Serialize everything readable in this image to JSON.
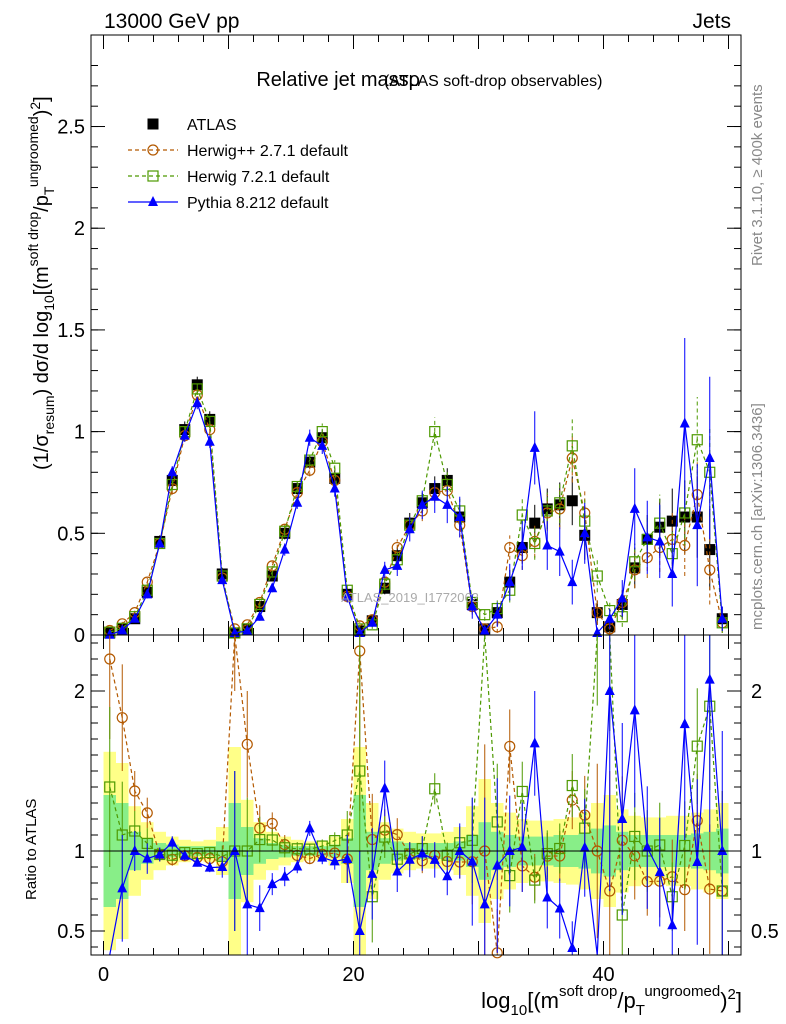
{
  "header": {
    "left": "13000 GeV pp",
    "right": "Jets"
  },
  "side_labels": {
    "rivet": "Rivet 3.1.10, ≥ 400k events",
    "mcplots": "mcplots.cern.ch [arXiv:1306.3436]"
  },
  "watermark": "ATLAS_2019_I1772062",
  "chart_data": {
    "type": "line",
    "title": "Relative jet massρ",
    "subtitle": "(ATLAS soft-drop observables)",
    "main_panel": {
      "ylabel": "(1/σresum) dσ/d log10[(msoft drop/pTungroomed)2]",
      "xlim": [
        -1,
        51
      ],
      "ylim": [
        0,
        2.95
      ],
      "yticks": [
        0,
        0.5,
        1,
        1.5,
        2,
        2.5
      ],
      "ytick_labels": [
        "0",
        "0.5",
        "1",
        "1.5",
        "2",
        "2.5"
      ]
    },
    "ratio_panel": {
      "ylabel": "Ratio to ATLAS",
      "ylim": [
        0.35,
        2.35
      ],
      "yticks": [
        0.5,
        1,
        2
      ],
      "ytick_labels": [
        "0.5",
        "1",
        "2"
      ]
    },
    "x": {
      "label": "log10[(msoft drop/pTungroomed)2]",
      "ticks": [
        0,
        20,
        40
      ],
      "tick_labels": [
        "0",
        "20",
        "40"
      ]
    },
    "legend": {
      "position": "top-left",
      "entries": [
        "ATLAS",
        "Herwig++ 2.7.1 default",
        "Herwig 7.2.1 default",
        "Pythia 8.212 default"
      ]
    },
    "series": [
      {
        "name": "ATLAS",
        "color": "#000000",
        "marker": "filled-square",
        "x": [
          0.5,
          1.5,
          2.5,
          3.5,
          4.5,
          5.5,
          6.5,
          7.5,
          8.5,
          9.5,
          10.5,
          11.5,
          12.5,
          13.5,
          14.5,
          15.5,
          16.5,
          17.5,
          18.5,
          19.5,
          20.5,
          21.5,
          22.5,
          23.5,
          24.5,
          25.5,
          26.5,
          27.5,
          28.5,
          29.5,
          30.5,
          31.5,
          32.5,
          33.5,
          34.5,
          35.5,
          36.5,
          37.5,
          38.5,
          39.5,
          40.5,
          41.5,
          42.5,
          43.5,
          44.5,
          45.5,
          46.5,
          47.5,
          48.5,
          49.5
        ],
        "y": [
          0.01,
          0.03,
          0.08,
          0.21,
          0.46,
          0.76,
          1.01,
          1.23,
          1.06,
          0.3,
          0.01,
          0.03,
          0.14,
          0.29,
          0.5,
          0.72,
          0.85,
          0.97,
          0.77,
          0.2,
          0.02,
          0.07,
          0.23,
          0.39,
          0.55,
          0.65,
          0.72,
          0.76,
          0.58,
          0.15,
          0.03,
          0.11,
          0.26,
          0.43,
          0.55,
          0.62,
          0.64,
          0.66,
          0.49,
          0.11,
          0.04,
          0.15,
          0.33,
          0.47,
          0.53,
          0.56,
          0.58,
          0.58,
          0.42,
          0.08
        ],
        "err": [
          0.005,
          0.01,
          0.01,
          0.02,
          0.03,
          0.04,
          0.04,
          0.04,
          0.04,
          0.03,
          0.005,
          0.01,
          0.02,
          0.02,
          0.03,
          0.03,
          0.03,
          0.04,
          0.04,
          0.03,
          0.01,
          0.02,
          0.03,
          0.04,
          0.05,
          0.05,
          0.06,
          0.06,
          0.06,
          0.04,
          0.02,
          0.04,
          0.06,
          0.08,
          0.09,
          0.1,
          0.11,
          0.12,
          0.12,
          0.06,
          0.03,
          0.07,
          0.1,
          0.12,
          0.14,
          0.16,
          0.18,
          0.2,
          0.2,
          0.06
        ]
      },
      {
        "name": "Herwig++ 2.7.1 default",
        "color": "#b35900",
        "marker": "open-circle",
        "dash": "4,3",
        "x": [
          0.5,
          1.5,
          2.5,
          3.5,
          4.5,
          5.5,
          6.5,
          7.5,
          8.5,
          9.5,
          10.5,
          11.5,
          12.5,
          13.5,
          14.5,
          15.5,
          16.5,
          17.5,
          18.5,
          19.5,
          20.5,
          21.5,
          22.5,
          23.5,
          24.5,
          25.5,
          26.5,
          27.5,
          28.5,
          29.5,
          30.5,
          31.5,
          32.5,
          33.5,
          34.5,
          35.5,
          36.5,
          37.5,
          38.5,
          39.5,
          40.5,
          41.5,
          42.5,
          43.5,
          44.5,
          45.5,
          46.5,
          47.5,
          48.5,
          49.5
        ],
        "y": [
          0.022,
          0.055,
          0.11,
          0.26,
          0.45,
          0.72,
          0.98,
          1.18,
          1.01,
          0.28,
          0.03,
          0.05,
          0.16,
          0.34,
          0.52,
          0.7,
          0.81,
          0.95,
          0.76,
          0.19,
          0.045,
          0.075,
          0.26,
          0.43,
          0.54,
          0.61,
          0.7,
          0.71,
          0.54,
          0.14,
          0.03,
          0.04,
          0.43,
          0.39,
          0.46,
          0.6,
          0.62,
          0.87,
          0.6,
          0.11,
          0.03,
          0.16,
          0.32,
          0.38,
          0.43,
          0.47,
          0.44,
          0.69,
          0.32,
          0.06
        ],
        "err": [
          0.005,
          0.01,
          0.01,
          0.02,
          0.02,
          0.03,
          0.03,
          0.03,
          0.03,
          0.02,
          0.01,
          0.01,
          0.02,
          0.02,
          0.03,
          0.03,
          0.03,
          0.04,
          0.04,
          0.03,
          0.02,
          0.02,
          0.03,
          0.04,
          0.04,
          0.05,
          0.05,
          0.06,
          0.06,
          0.04,
          0.02,
          0.03,
          0.06,
          0.07,
          0.08,
          0.09,
          0.1,
          0.12,
          0.12,
          0.06,
          0.03,
          0.06,
          0.09,
          0.1,
          0.12,
          0.13,
          0.15,
          0.17,
          0.17,
          0.05
        ]
      },
      {
        "name": "Herwig 7.2.1 default",
        "color": "#4d9900",
        "marker": "open-square",
        "dash": "4,3",
        "x": [
          0.5,
          1.5,
          2.5,
          3.5,
          4.5,
          5.5,
          6.5,
          7.5,
          8.5,
          9.5,
          10.5,
          11.5,
          12.5,
          13.5,
          14.5,
          15.5,
          16.5,
          17.5,
          18.5,
          19.5,
          20.5,
          21.5,
          22.5,
          23.5,
          24.5,
          25.5,
          26.5,
          27.5,
          28.5,
          29.5,
          30.5,
          31.5,
          32.5,
          33.5,
          34.5,
          35.5,
          36.5,
          37.5,
          38.5,
          39.5,
          40.5,
          41.5,
          42.5,
          43.5,
          44.5,
          45.5,
          46.5,
          47.5,
          48.5,
          49.5
        ],
        "y": [
          0.014,
          0.033,
          0.09,
          0.22,
          0.45,
          0.74,
          1.0,
          1.21,
          1.05,
          0.29,
          0.01,
          0.03,
          0.15,
          0.31,
          0.51,
          0.73,
          0.86,
          1.0,
          0.82,
          0.22,
          0.03,
          0.05,
          0.25,
          0.37,
          0.54,
          0.66,
          1.0,
          0.74,
          0.61,
          0.16,
          0.1,
          0.13,
          0.22,
          0.59,
          0.45,
          0.61,
          0.65,
          0.93,
          0.56,
          0.29,
          0.12,
          0.09,
          0.36,
          0.47,
          0.55,
          0.4,
          0.6,
          0.96,
          0.8,
          0.06
        ],
        "err": [
          0.005,
          0.01,
          0.01,
          0.02,
          0.02,
          0.03,
          0.03,
          0.03,
          0.03,
          0.02,
          0.005,
          0.01,
          0.02,
          0.02,
          0.03,
          0.03,
          0.03,
          0.04,
          0.04,
          0.03,
          0.02,
          0.02,
          0.03,
          0.04,
          0.04,
          0.05,
          0.07,
          0.06,
          0.06,
          0.04,
          0.03,
          0.04,
          0.06,
          0.08,
          0.08,
          0.09,
          0.1,
          0.13,
          0.12,
          0.08,
          0.05,
          0.05,
          0.09,
          0.12,
          0.14,
          0.12,
          0.16,
          0.21,
          0.22,
          0.05
        ]
      },
      {
        "name": "Pythia 8.212 default",
        "color": "#0000ff",
        "marker": "filled-triangle",
        "x": [
          0.5,
          1.5,
          2.5,
          3.5,
          4.5,
          5.5,
          6.5,
          7.5,
          8.5,
          9.5,
          10.5,
          11.5,
          12.5,
          13.5,
          14.5,
          15.5,
          16.5,
          17.5,
          18.5,
          19.5,
          20.5,
          21.5,
          22.5,
          23.5,
          24.5,
          25.5,
          26.5,
          27.5,
          28.5,
          29.5,
          30.5,
          31.5,
          32.5,
          33.5,
          34.5,
          35.5,
          36.5,
          37.5,
          38.5,
          39.5,
          40.5,
          41.5,
          42.5,
          43.5,
          44.5,
          45.5,
          46.5,
          47.5,
          48.5,
          49.5
        ],
        "y": [
          0.001,
          0.023,
          0.08,
          0.2,
          0.45,
          0.8,
          0.98,
          1.14,
          0.95,
          0.27,
          0.01,
          0.02,
          0.09,
          0.23,
          0.42,
          0.65,
          0.97,
          0.93,
          0.72,
          0.19,
          0.01,
          0.06,
          0.32,
          0.34,
          0.52,
          0.64,
          0.68,
          0.64,
          0.58,
          0.14,
          0.02,
          0.1,
          0.26,
          0.44,
          0.92,
          0.44,
          0.41,
          0.26,
          0.5,
          0.01,
          0.08,
          0.18,
          0.62,
          0.48,
          0.46,
          0.3,
          1.04,
          0.54,
          0.87,
          0.08
        ],
        "err": [
          0.001,
          0.01,
          0.01,
          0.02,
          0.02,
          0.03,
          0.03,
          0.03,
          0.03,
          0.02,
          0.005,
          0.01,
          0.02,
          0.02,
          0.03,
          0.03,
          0.04,
          0.04,
          0.04,
          0.03,
          0.01,
          0.02,
          0.04,
          0.05,
          0.06,
          0.07,
          0.08,
          0.09,
          0.1,
          0.06,
          0.02,
          0.06,
          0.09,
          0.12,
          0.18,
          0.12,
          0.12,
          0.11,
          0.15,
          0.02,
          0.05,
          0.09,
          0.2,
          0.18,
          0.18,
          0.16,
          0.42,
          0.3,
          0.4,
          0.06
        ]
      }
    ],
    "ratio_bands": {
      "inner_color": "#88ee88",
      "outer_color": "#ffff88",
      "inner": [
        0.35,
        0.3,
        0.12,
        0.08,
        0.05,
        0.04,
        0.03,
        0.03,
        0.03,
        0.06,
        0.3,
        0.15,
        0.08,
        0.05,
        0.04,
        0.03,
        0.03,
        0.03,
        0.04,
        0.08,
        0.35,
        0.12,
        0.08,
        0.06,
        0.05,
        0.05,
        0.05,
        0.05,
        0.06,
        0.1,
        0.18,
        0.12,
        0.1,
        0.09,
        0.09,
        0.09,
        0.1,
        0.1,
        0.11,
        0.14,
        0.16,
        0.12,
        0.1,
        0.1,
        0.1,
        0.1,
        0.1,
        0.11,
        0.12,
        0.14
      ],
      "outer": [
        0.62,
        0.55,
        0.28,
        0.18,
        0.12,
        0.09,
        0.07,
        0.06,
        0.07,
        0.15,
        0.65,
        0.32,
        0.18,
        0.12,
        0.09,
        0.07,
        0.06,
        0.06,
        0.09,
        0.2,
        0.65,
        0.3,
        0.18,
        0.14,
        0.12,
        0.11,
        0.11,
        0.12,
        0.15,
        0.28,
        0.45,
        0.3,
        0.24,
        0.2,
        0.19,
        0.19,
        0.2,
        0.21,
        0.24,
        0.3,
        0.35,
        0.26,
        0.22,
        0.21,
        0.21,
        0.22,
        0.22,
        0.24,
        0.26,
        0.3
      ]
    }
  }
}
